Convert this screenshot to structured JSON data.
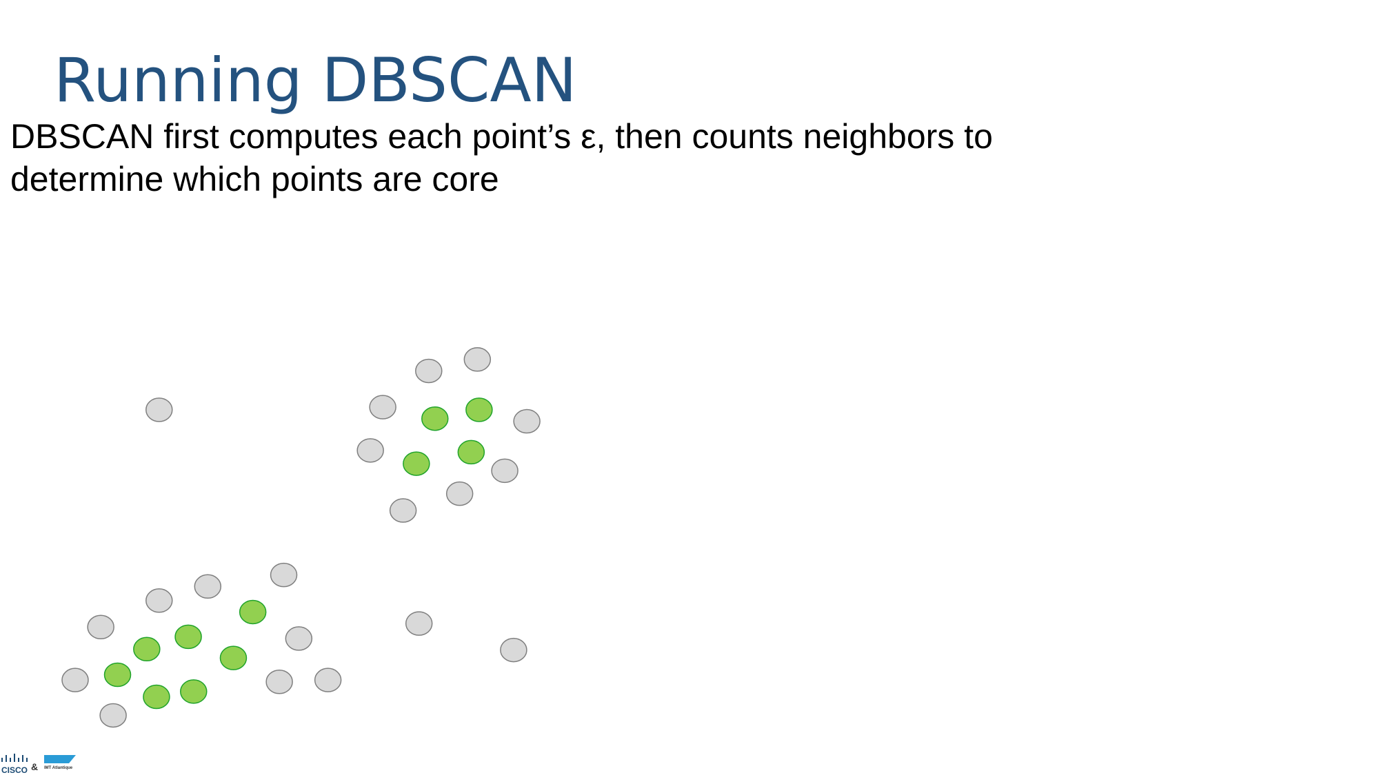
{
  "slide": {
    "title": "Running DBSCAN",
    "body": [
      "DBSCAN first computes each point’s ε, then counts neighbors to",
      "determine which points are core"
    ],
    "logo": {
      "left": "CISCO",
      "joiner": "&",
      "right": "IMT Atlantique"
    }
  }
}
